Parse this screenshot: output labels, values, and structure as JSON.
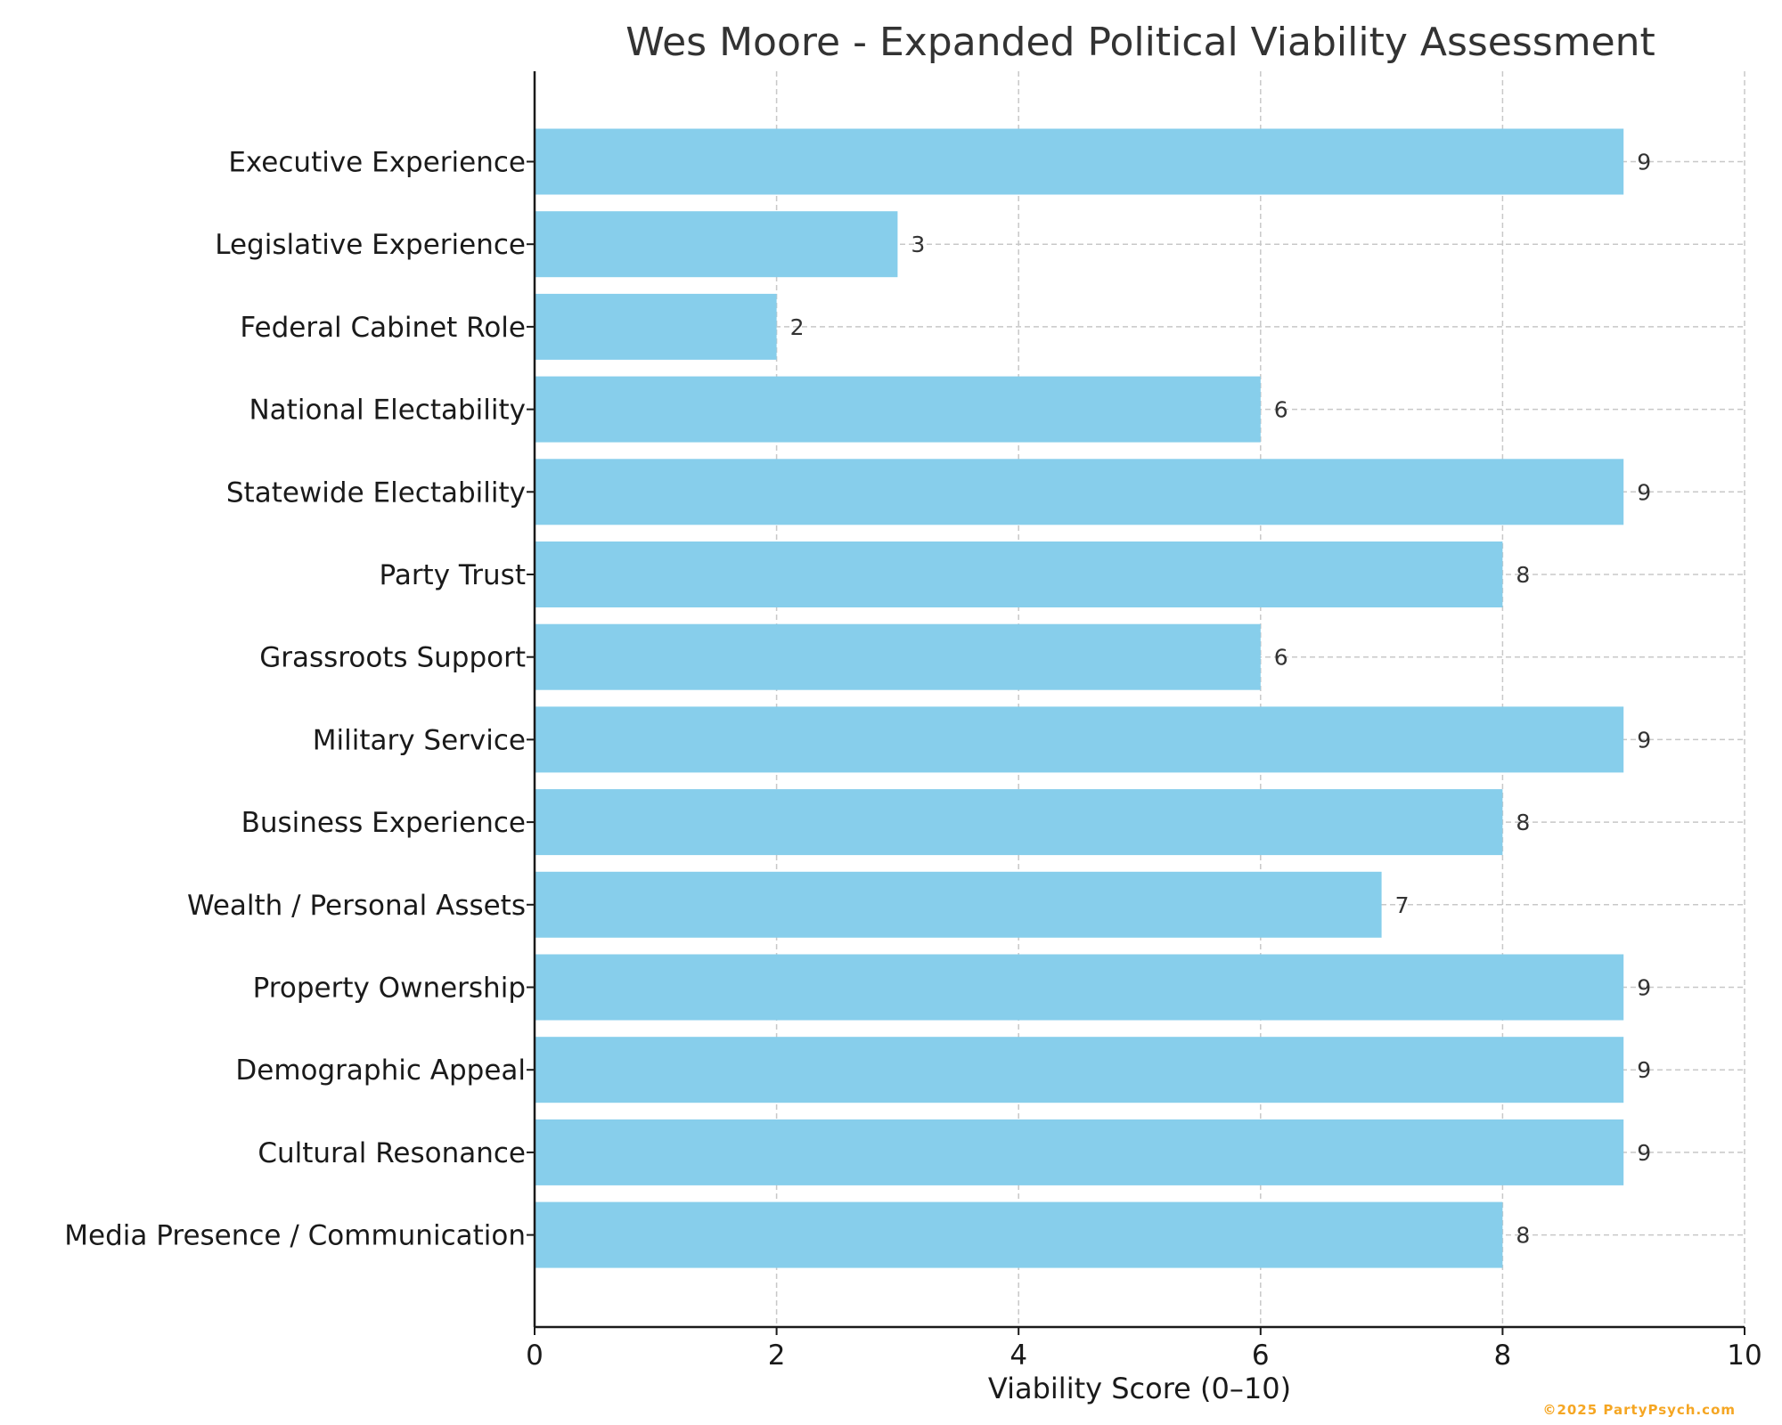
{
  "chart_data": {
    "type": "bar",
    "orientation": "horizontal",
    "title": "Wes Moore - Expanded Political Viability Assessment",
    "xlabel": "Viability Score (0–10)",
    "ylabel": "",
    "xlim": [
      0,
      10
    ],
    "xticks": [
      "0",
      "2",
      "4",
      "6",
      "8",
      "10"
    ],
    "grid": true,
    "bar_color": "#87ceeb",
    "categories": [
      "Executive Experience",
      "Legislative Experience",
      "Federal Cabinet Role",
      "National Electability",
      "Statewide Electability",
      "Party Trust",
      "Grassroots Support",
      "Military Service",
      "Business Experience",
      "Wealth / Personal Assets",
      "Property Ownership",
      "Demographic Appeal",
      "Cultural Resonance",
      "Media Presence / Communication"
    ],
    "values": [
      9,
      3,
      2,
      6,
      9,
      8,
      6,
      9,
      8,
      7,
      9,
      9,
      9,
      8
    ]
  },
  "footer": {
    "watermark": "©2025 PartyPsych.com",
    "watermark_color": "#f5a623"
  }
}
